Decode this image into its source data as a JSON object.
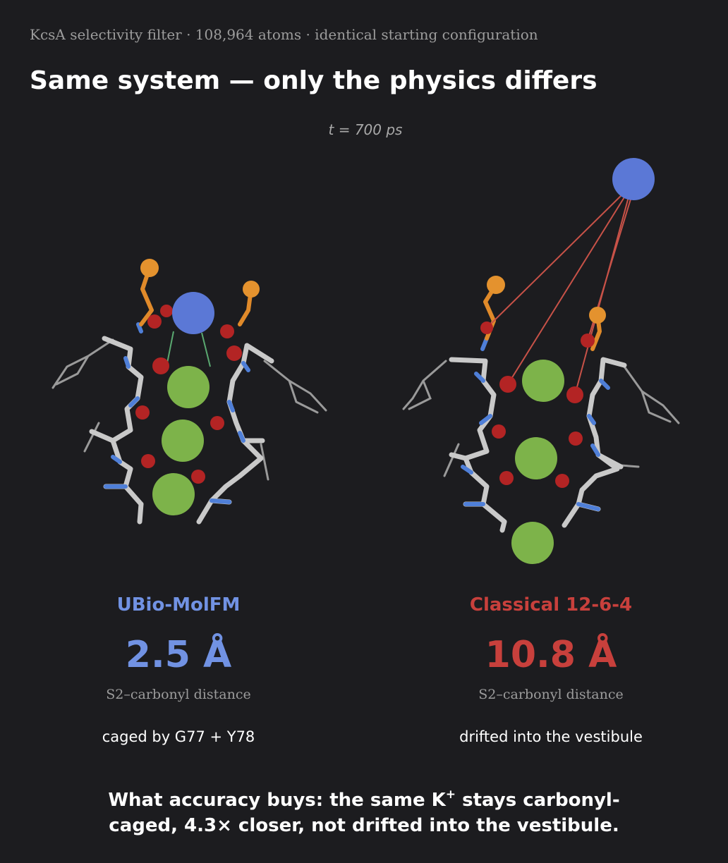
{
  "header": {
    "subtitle": "KcsA selectivity filter · 108,964 atoms · identical starting configuration",
    "title": "Same system — only the physics differs",
    "time": "t = 700 ps"
  },
  "panels": [
    {
      "model": "UBio-MolFM",
      "distance": "2.5 Å",
      "metric": "S2–carbonyl distance",
      "note": "caged by G77 + Y78"
    },
    {
      "model": "Classical 12-6-4",
      "distance": "10.8 Å",
      "metric": "S2–carbonyl distance",
      "note": "drifted into the vestibule"
    }
  ],
  "footer": {
    "line1_start": "What accuracy buys: the same K",
    "superscript": "+",
    "line1_end": " stays carbonyl-",
    "line2": "caged, 4.3× closer, not drifted into the vestibule."
  }
}
